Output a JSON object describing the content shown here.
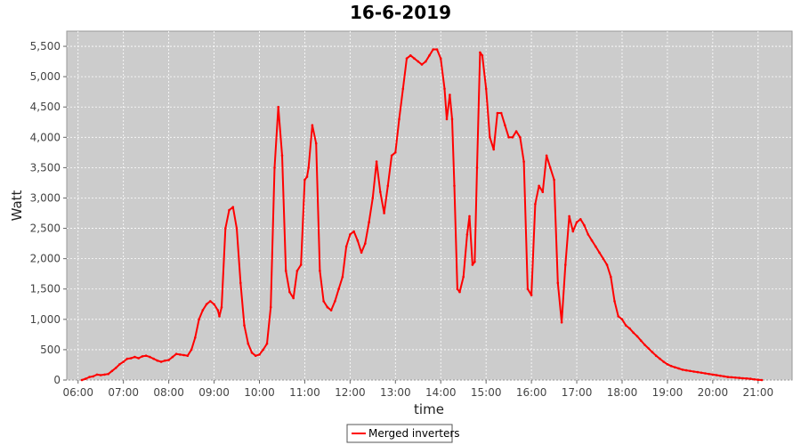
{
  "chart_data": {
    "type": "line",
    "title": "16-6-2019",
    "xlabel": "time",
    "ylabel": "Watt",
    "x_ticks": [
      "06:00",
      "07:00",
      "08:00",
      "09:00",
      "10:00",
      "11:00",
      "12:00",
      "13:00",
      "14:00",
      "15:00",
      "16:00",
      "17:00",
      "18:00",
      "19:00",
      "20:00",
      "21:00"
    ],
    "y_ticks": [
      "0",
      "500",
      "1,000",
      "1,500",
      "2,000",
      "2,500",
      "3,000",
      "3,500",
      "4,000",
      "4,500",
      "5,000",
      "5,500"
    ],
    "xlim": [
      "05:45",
      "21:45"
    ],
    "ylim": [
      0,
      5750
    ],
    "grid": true,
    "legend_position": "bottom-center",
    "series": [
      {
        "name": "Merged inverters",
        "color": "#ff0000",
        "points": [
          [
            "06:05",
            0
          ],
          [
            "06:10",
            20
          ],
          [
            "06:15",
            50
          ],
          [
            "06:20",
            60
          ],
          [
            "06:25",
            90
          ],
          [
            "06:30",
            80
          ],
          [
            "06:35",
            90
          ],
          [
            "06:40",
            100
          ],
          [
            "06:45",
            150
          ],
          [
            "06:50",
            200
          ],
          [
            "06:55",
            260
          ],
          [
            "07:00",
            300
          ],
          [
            "07:05",
            350
          ],
          [
            "07:10",
            360
          ],
          [
            "07:15",
            380
          ],
          [
            "07:20",
            360
          ],
          [
            "07:25",
            390
          ],
          [
            "07:30",
            400
          ],
          [
            "07:35",
            380
          ],
          [
            "07:40",
            350
          ],
          [
            "07:45",
            320
          ],
          [
            "07:50",
            300
          ],
          [
            "07:55",
            320
          ],
          [
            "08:00",
            330
          ],
          [
            "08:05",
            380
          ],
          [
            "08:10",
            430
          ],
          [
            "08:15",
            420
          ],
          [
            "08:20",
            410
          ],
          [
            "08:25",
            400
          ],
          [
            "08:30",
            500
          ],
          [
            "08:35",
            700
          ],
          [
            "08:40",
            1000
          ],
          [
            "08:45",
            1150
          ],
          [
            "08:50",
            1250
          ],
          [
            "08:55",
            1300
          ],
          [
            "09:00",
            1250
          ],
          [
            "09:05",
            1150
          ],
          [
            "09:07",
            1050
          ],
          [
            "09:10",
            1200
          ],
          [
            "09:15",
            2500
          ],
          [
            "09:20",
            2800
          ],
          [
            "09:25",
            2850
          ],
          [
            "09:30",
            2500
          ],
          [
            "09:35",
            1600
          ],
          [
            "09:40",
            900
          ],
          [
            "09:45",
            600
          ],
          [
            "09:50",
            450
          ],
          [
            "09:55",
            400
          ],
          [
            "10:00",
            420
          ],
          [
            "10:05",
            500
          ],
          [
            "10:10",
            600
          ],
          [
            "10:15",
            1200
          ],
          [
            "10:20",
            3500
          ],
          [
            "10:25",
            4500
          ],
          [
            "10:30",
            3700
          ],
          [
            "10:35",
            1800
          ],
          [
            "10:40",
            1450
          ],
          [
            "10:45",
            1350
          ],
          [
            "10:50",
            1800
          ],
          [
            "10:55",
            1900
          ],
          [
            "11:00",
            3300
          ],
          [
            "11:03",
            3350
          ],
          [
            "11:05",
            3500
          ],
          [
            "11:10",
            4200
          ],
          [
            "11:15",
            3900
          ],
          [
            "11:20",
            1800
          ],
          [
            "11:25",
            1300
          ],
          [
            "11:30",
            1200
          ],
          [
            "11:35",
            1150
          ],
          [
            "11:40",
            1300
          ],
          [
            "11:45",
            1500
          ],
          [
            "11:50",
            1700
          ],
          [
            "11:55",
            2200
          ],
          [
            "12:00",
            2400
          ],
          [
            "12:05",
            2450
          ],
          [
            "12:10",
            2300
          ],
          [
            "12:15",
            2100
          ],
          [
            "12:20",
            2250
          ],
          [
            "12:25",
            2600
          ],
          [
            "12:30",
            3000
          ],
          [
            "12:35",
            3600
          ],
          [
            "12:40",
            3100
          ],
          [
            "12:45",
            2750
          ],
          [
            "12:50",
            3200
          ],
          [
            "12:55",
            3700
          ],
          [
            "13:00",
            3750
          ],
          [
            "13:05",
            4300
          ],
          [
            "13:10",
            4800
          ],
          [
            "13:15",
            5300
          ],
          [
            "13:20",
            5350
          ],
          [
            "13:25",
            5300
          ],
          [
            "13:30",
            5250
          ],
          [
            "13:35",
            5200
          ],
          [
            "13:40",
            5250
          ],
          [
            "13:45",
            5350
          ],
          [
            "13:50",
            5450
          ],
          [
            "13:55",
            5450
          ],
          [
            "14:00",
            5300
          ],
          [
            "14:05",
            4800
          ],
          [
            "14:08",
            4300
          ],
          [
            "14:12",
            4700
          ],
          [
            "14:15",
            4300
          ],
          [
            "14:18",
            3200
          ],
          [
            "14:22",
            1500
          ],
          [
            "14:25",
            1450
          ],
          [
            "14:30",
            1700
          ],
          [
            "14:35",
            2400
          ],
          [
            "14:38",
            2700
          ],
          [
            "14:42",
            1900
          ],
          [
            "14:45",
            1950
          ],
          [
            "14:48",
            3500
          ],
          [
            "14:52",
            5400
          ],
          [
            "14:55",
            5350
          ],
          [
            "15:00",
            4800
          ],
          [
            "15:05",
            4000
          ],
          [
            "15:10",
            3800
          ],
          [
            "15:15",
            4400
          ],
          [
            "15:20",
            4400
          ],
          [
            "15:25",
            4200
          ],
          [
            "15:30",
            4000
          ],
          [
            "15:35",
            4000
          ],
          [
            "15:40",
            4100
          ],
          [
            "15:45",
            4000
          ],
          [
            "15:50",
            3600
          ],
          [
            "15:55",
            1500
          ],
          [
            "16:00",
            1400
          ],
          [
            "16:05",
            2900
          ],
          [
            "16:10",
            3200
          ],
          [
            "16:15",
            3100
          ],
          [
            "16:20",
            3700
          ],
          [
            "16:25",
            3500
          ],
          [
            "16:30",
            3300
          ],
          [
            "16:35",
            1600
          ],
          [
            "16:40",
            950
          ],
          [
            "16:45",
            1900
          ],
          [
            "16:50",
            2700
          ],
          [
            "16:55",
            2450
          ],
          [
            "17:00",
            2600
          ],
          [
            "17:05",
            2650
          ],
          [
            "17:10",
            2550
          ],
          [
            "17:15",
            2400
          ],
          [
            "17:20",
            2300
          ],
          [
            "17:25",
            2200
          ],
          [
            "17:30",
            2100
          ],
          [
            "17:35",
            2000
          ],
          [
            "17:40",
            1900
          ],
          [
            "17:45",
            1700
          ],
          [
            "17:50",
            1300
          ],
          [
            "17:55",
            1050
          ],
          [
            "18:00",
            1000
          ],
          [
            "18:05",
            900
          ],
          [
            "18:10",
            850
          ],
          [
            "18:15",
            780
          ],
          [
            "18:20",
            720
          ],
          [
            "18:25",
            650
          ],
          [
            "18:30",
            580
          ],
          [
            "18:35",
            520
          ],
          [
            "18:40",
            460
          ],
          [
            "18:45",
            400
          ],
          [
            "18:50",
            350
          ],
          [
            "18:55",
            300
          ],
          [
            "19:00",
            260
          ],
          [
            "19:05",
            230
          ],
          [
            "19:10",
            210
          ],
          [
            "19:15",
            190
          ],
          [
            "19:20",
            170
          ],
          [
            "19:25",
            160
          ],
          [
            "19:30",
            150
          ],
          [
            "19:35",
            140
          ],
          [
            "19:40",
            130
          ],
          [
            "19:45",
            120
          ],
          [
            "19:50",
            110
          ],
          [
            "19:55",
            100
          ],
          [
            "20:00",
            90
          ],
          [
            "20:05",
            80
          ],
          [
            "20:10",
            70
          ],
          [
            "20:15",
            60
          ],
          [
            "20:20",
            50
          ],
          [
            "20:25",
            45
          ],
          [
            "20:30",
            40
          ],
          [
            "20:35",
            35
          ],
          [
            "20:40",
            30
          ],
          [
            "20:45",
            25
          ],
          [
            "20:50",
            20
          ],
          [
            "20:55",
            10
          ],
          [
            "21:00",
            5
          ],
          [
            "21:05",
            0
          ]
        ]
      }
    ]
  }
}
